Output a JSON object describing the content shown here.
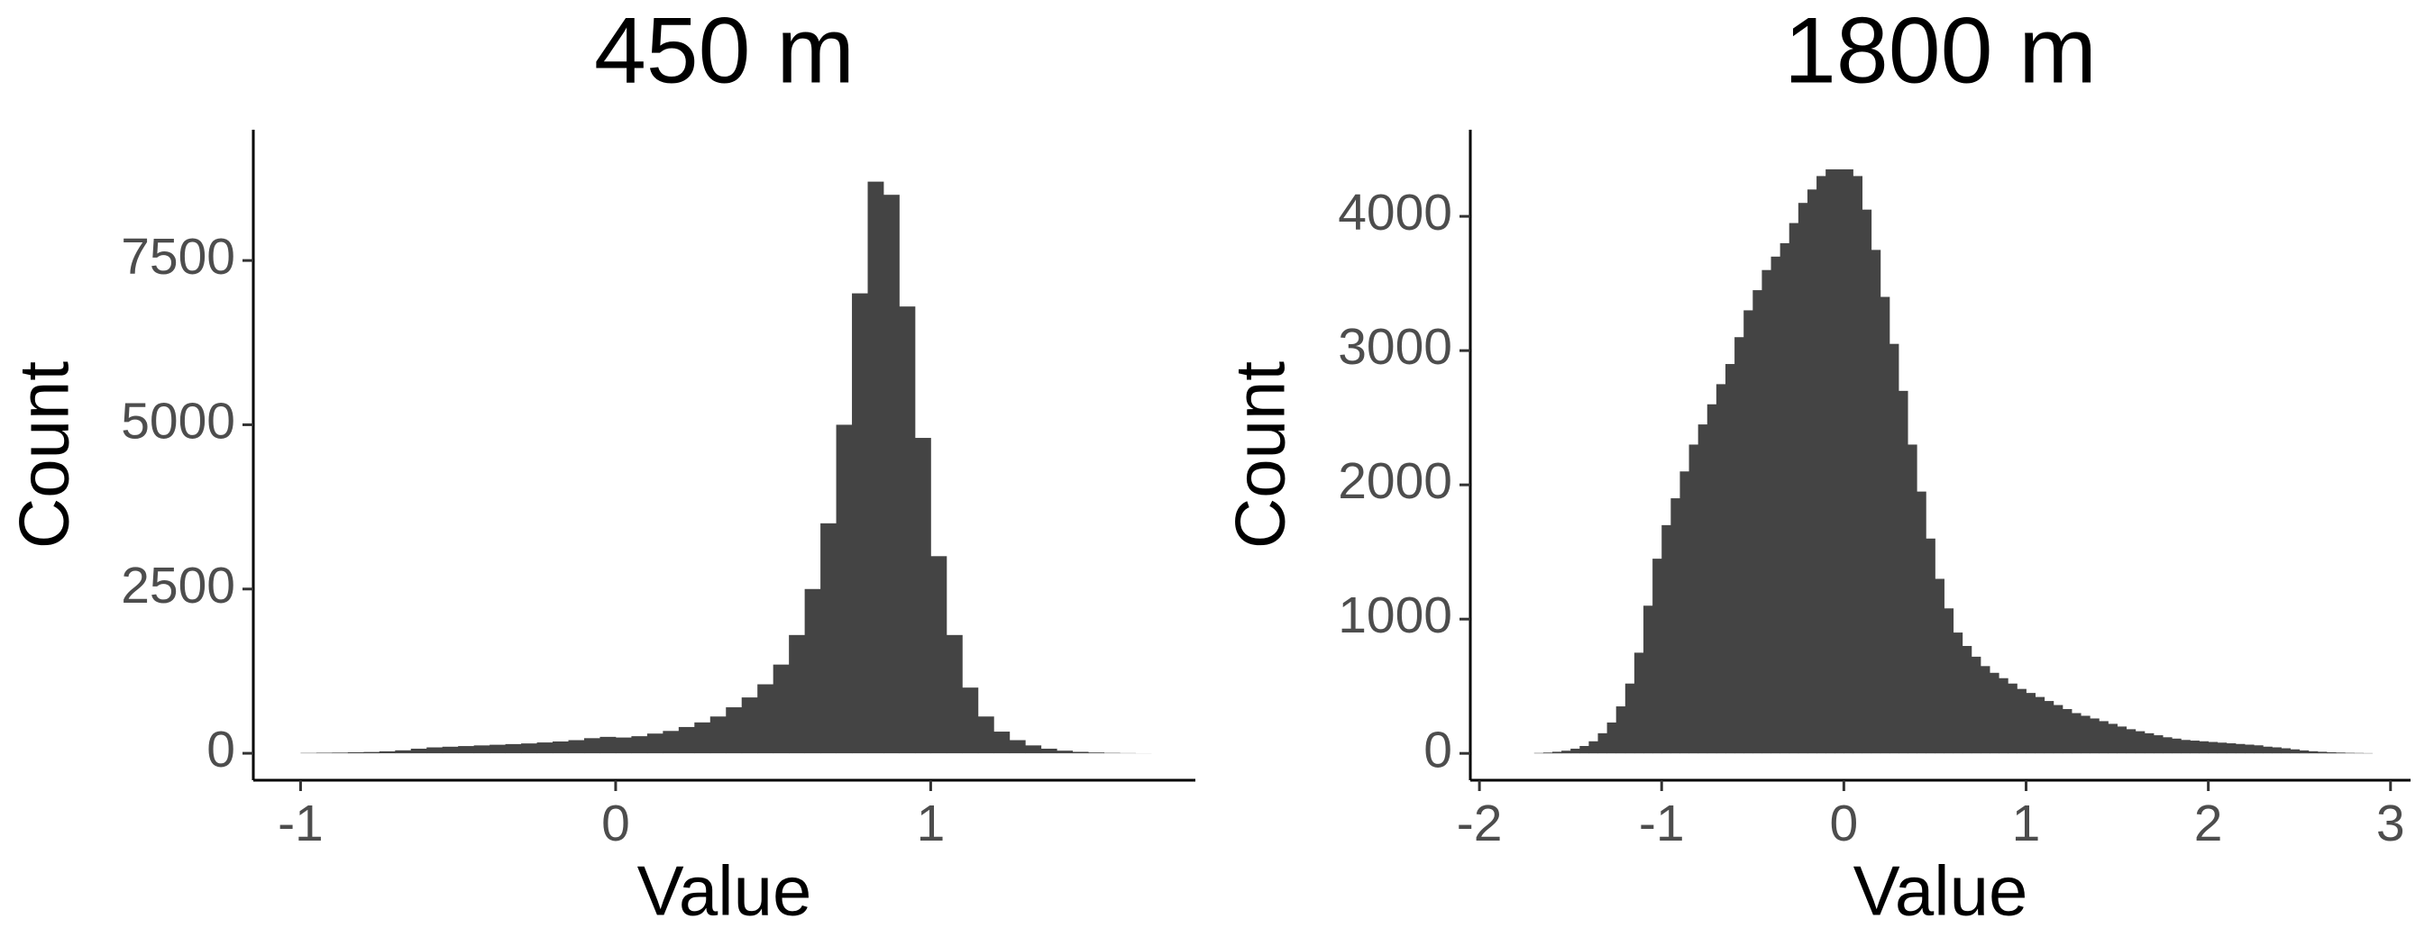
{
  "chart_data": [
    {
      "type": "histogram",
      "title": "450 m",
      "xlabel": "Value",
      "ylabel": "Count",
      "color": "#444444",
      "bins": [
        -1.0,
        -0.95,
        -0.9,
        -0.85,
        -0.8,
        -0.75,
        -0.7,
        -0.65,
        -0.6,
        -0.55,
        -0.5,
        -0.45,
        -0.4,
        -0.35,
        -0.3,
        -0.25,
        -0.2,
        -0.15,
        -0.1,
        -0.05,
        0,
        0.05,
        0.1,
        0.15,
        0.2,
        0.25,
        0.3,
        0.35,
        0.4,
        0.45,
        0.5,
        0.55,
        0.6,
        0.65,
        0.7,
        0.75,
        0.8,
        0.85,
        0.9,
        0.95,
        1.0,
        1.05,
        1.1,
        1.15,
        1.2,
        1.25,
        1.3,
        1.35,
        1.4,
        1.45,
        1.5,
        1.55,
        1.6,
        1.65,
        1.7
      ],
      "counts": [
        5,
        8,
        10,
        15,
        20,
        30,
        45,
        70,
        90,
        100,
        110,
        120,
        130,
        140,
        150,
        165,
        180,
        200,
        230,
        250,
        240,
        260,
        300,
        340,
        400,
        470,
        560,
        700,
        850,
        1050,
        1350,
        1800,
        2500,
        3500,
        5000,
        7000,
        8700,
        8500,
        6800,
        4800,
        3000,
        1800,
        1000,
        560,
        330,
        200,
        120,
        70,
        40,
        22,
        12,
        6,
        3,
        1
      ],
      "xlim": [
        -1.15,
        1.84
      ],
      "ylim": [
        -410,
        9490
      ],
      "xticks": [
        -1,
        0,
        1
      ],
      "yticks": [
        0,
        2500,
        5000,
        7500
      ]
    },
    {
      "type": "histogram",
      "title": "1800 m",
      "xlabel": "Value",
      "ylabel": "Count",
      "color": "#444444",
      "bins": [
        -1.7,
        -1.65,
        -1.6,
        -1.55,
        -1.5,
        -1.45,
        -1.4,
        -1.35,
        -1.3,
        -1.25,
        -1.2,
        -1.15,
        -1.1,
        -1.05,
        -1.0,
        -0.95,
        -0.9,
        -0.85,
        -0.8,
        -0.75,
        -0.7,
        -0.65,
        -0.6,
        -0.55,
        -0.5,
        -0.45,
        -0.4,
        -0.35,
        -0.3,
        -0.25,
        -0.2,
        -0.15,
        -0.1,
        -0.05,
        0,
        0.05,
        0.1,
        0.15,
        0.2,
        0.25,
        0.3,
        0.35,
        0.4,
        0.45,
        0.5,
        0.55,
        0.6,
        0.65,
        0.7,
        0.75,
        0.8,
        0.85,
        0.9,
        0.95,
        1.0,
        1.05,
        1.1,
        1.15,
        1.2,
        1.25,
        1.3,
        1.35,
        1.4,
        1.45,
        1.5,
        1.55,
        1.6,
        1.65,
        1.7,
        1.75,
        1.8,
        1.85,
        1.9,
        1.95,
        2.0,
        2.05,
        2.1,
        2.15,
        2.2,
        2.25,
        2.3,
        2.35,
        2.4,
        2.45,
        2.5,
        2.55,
        2.6,
        2.65,
        2.7,
        2.75,
        2.8,
        2.85,
        2.9
      ],
      "counts": [
        3,
        6,
        12,
        20,
        35,
        55,
        90,
        150,
        230,
        350,
        520,
        750,
        1100,
        1450,
        1700,
        1900,
        2100,
        2300,
        2450,
        2600,
        2750,
        2900,
        3100,
        3300,
        3450,
        3600,
        3700,
        3800,
        3950,
        4100,
        4200,
        4300,
        4350,
        4350,
        4350,
        4300,
        4050,
        3750,
        3400,
        3050,
        2700,
        2300,
        1950,
        1600,
        1300,
        1080,
        900,
        800,
        720,
        650,
        600,
        560,
        520,
        480,
        450,
        420,
        390,
        360,
        330,
        300,
        280,
        260,
        240,
        220,
        200,
        180,
        165,
        150,
        135,
        120,
        110,
        100,
        95,
        90,
        85,
        80,
        75,
        70,
        65,
        60,
        50,
        45,
        38,
        30,
        22,
        16,
        12,
        8,
        6,
        4,
        3,
        2
      ],
      "xlim": [
        -2.05,
        3.11
      ],
      "ylim": [
        -200,
        4645
      ],
      "xticks": [
        -2,
        -1,
        0,
        1,
        2,
        3
      ],
      "yticks": [
        0,
        1000,
        2000,
        3000,
        4000
      ]
    }
  ]
}
